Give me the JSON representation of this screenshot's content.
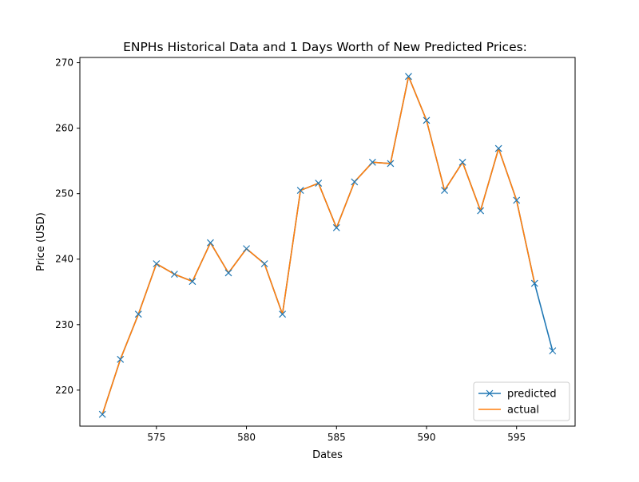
{
  "chart_data": {
    "type": "line",
    "title": "ENPHs Historical Data and 1 Days Worth of New Predicted Prices:",
    "xlabel": "Dates",
    "ylabel": "Price (USD)",
    "xlim": [
      570.75,
      598.25
    ],
    "ylim": [
      214.5,
      270.8
    ],
    "xticks": [
      575,
      580,
      585,
      590,
      595
    ],
    "yticks": [
      220,
      230,
      240,
      250,
      260,
      270
    ],
    "legend_position": "lower right",
    "grid": false,
    "series": [
      {
        "name": "predicted",
        "color": "#1f77b4",
        "marker": "x",
        "x": [
          572,
          573,
          574,
          575,
          576,
          577,
          578,
          579,
          580,
          581,
          582,
          583,
          584,
          585,
          586,
          587,
          588,
          589,
          590,
          591,
          592,
          593,
          594,
          595,
          596,
          597
        ],
        "values": [
          216.3,
          224.7,
          231.6,
          239.3,
          237.7,
          236.6,
          242.5,
          237.9,
          241.6,
          239.3,
          231.6,
          250.5,
          251.6,
          244.8,
          251.8,
          254.8,
          254.6,
          267.9,
          261.2,
          250.5,
          254.8,
          247.4,
          256.9,
          249.0,
          236.3,
          226.0
        ]
      },
      {
        "name": "actual",
        "color": "#ff7f0e",
        "marker": "",
        "x": [
          572,
          573,
          574,
          575,
          576,
          577,
          578,
          579,
          580,
          581,
          582,
          583,
          584,
          585,
          586,
          587,
          588,
          589,
          590,
          591,
          592,
          593,
          594,
          595,
          596
        ],
        "values": [
          216.3,
          224.7,
          231.6,
          239.3,
          237.7,
          236.6,
          242.5,
          237.9,
          241.6,
          239.3,
          231.6,
          250.5,
          251.6,
          244.8,
          251.8,
          254.8,
          254.6,
          267.9,
          261.2,
          250.5,
          254.8,
          247.4,
          256.9,
          249.0,
          236.3
        ]
      }
    ]
  }
}
